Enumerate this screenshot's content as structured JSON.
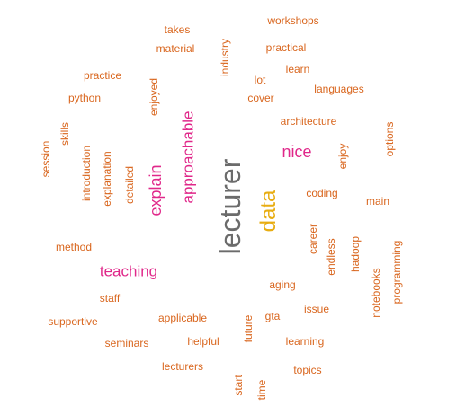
{
  "colors": {
    "orange": "#d9661e",
    "magenta": "#e0288a",
    "gray": "#6b6b6b",
    "gold": "#e8ad12"
  },
  "words": [
    {
      "text": "workshops",
      "color": "orange"
    },
    {
      "text": "takes",
      "color": "orange"
    },
    {
      "text": "material",
      "color": "orange"
    },
    {
      "text": "industry",
      "color": "orange"
    },
    {
      "text": "practical",
      "color": "orange"
    },
    {
      "text": "learn",
      "color": "orange"
    },
    {
      "text": "practice",
      "color": "orange"
    },
    {
      "text": "lot",
      "color": "orange"
    },
    {
      "text": "languages",
      "color": "orange"
    },
    {
      "text": "enjoyed",
      "color": "orange"
    },
    {
      "text": "python",
      "color": "orange"
    },
    {
      "text": "cover",
      "color": "orange"
    },
    {
      "text": "approachable",
      "color": "magenta"
    },
    {
      "text": "architecture",
      "color": "orange"
    },
    {
      "text": "skills",
      "color": "orange"
    },
    {
      "text": "options",
      "color": "orange"
    },
    {
      "text": "session",
      "color": "orange"
    },
    {
      "text": "introduction",
      "color": "orange"
    },
    {
      "text": "explanation",
      "color": "orange"
    },
    {
      "text": "detailed",
      "color": "orange"
    },
    {
      "text": "explain",
      "color": "magenta"
    },
    {
      "text": "lecturer",
      "color": "gray"
    },
    {
      "text": "nice",
      "color": "magenta"
    },
    {
      "text": "enjoy",
      "color": "orange"
    },
    {
      "text": "coding",
      "color": "orange"
    },
    {
      "text": "data",
      "color": "gold"
    },
    {
      "text": "main",
      "color": "orange"
    },
    {
      "text": "career",
      "color": "orange"
    },
    {
      "text": "endless",
      "color": "orange"
    },
    {
      "text": "hadoop",
      "color": "orange"
    },
    {
      "text": "programming",
      "color": "orange"
    },
    {
      "text": "method",
      "color": "orange"
    },
    {
      "text": "notebooks",
      "color": "orange"
    },
    {
      "text": "teaching",
      "color": "magenta"
    },
    {
      "text": "aging",
      "color": "orange"
    },
    {
      "text": "staff",
      "color": "orange"
    },
    {
      "text": "issue",
      "color": "orange"
    },
    {
      "text": "gta",
      "color": "orange"
    },
    {
      "text": "applicable",
      "color": "orange"
    },
    {
      "text": "supportive",
      "color": "orange"
    },
    {
      "text": "future",
      "color": "orange"
    },
    {
      "text": "seminars",
      "color": "orange"
    },
    {
      "text": "helpful",
      "color": "orange"
    },
    {
      "text": "learning",
      "color": "orange"
    },
    {
      "text": "lecturers",
      "color": "orange"
    },
    {
      "text": "topics",
      "color": "orange"
    },
    {
      "text": "start",
      "color": "orange"
    },
    {
      "text": "time",
      "color": "orange"
    }
  ]
}
